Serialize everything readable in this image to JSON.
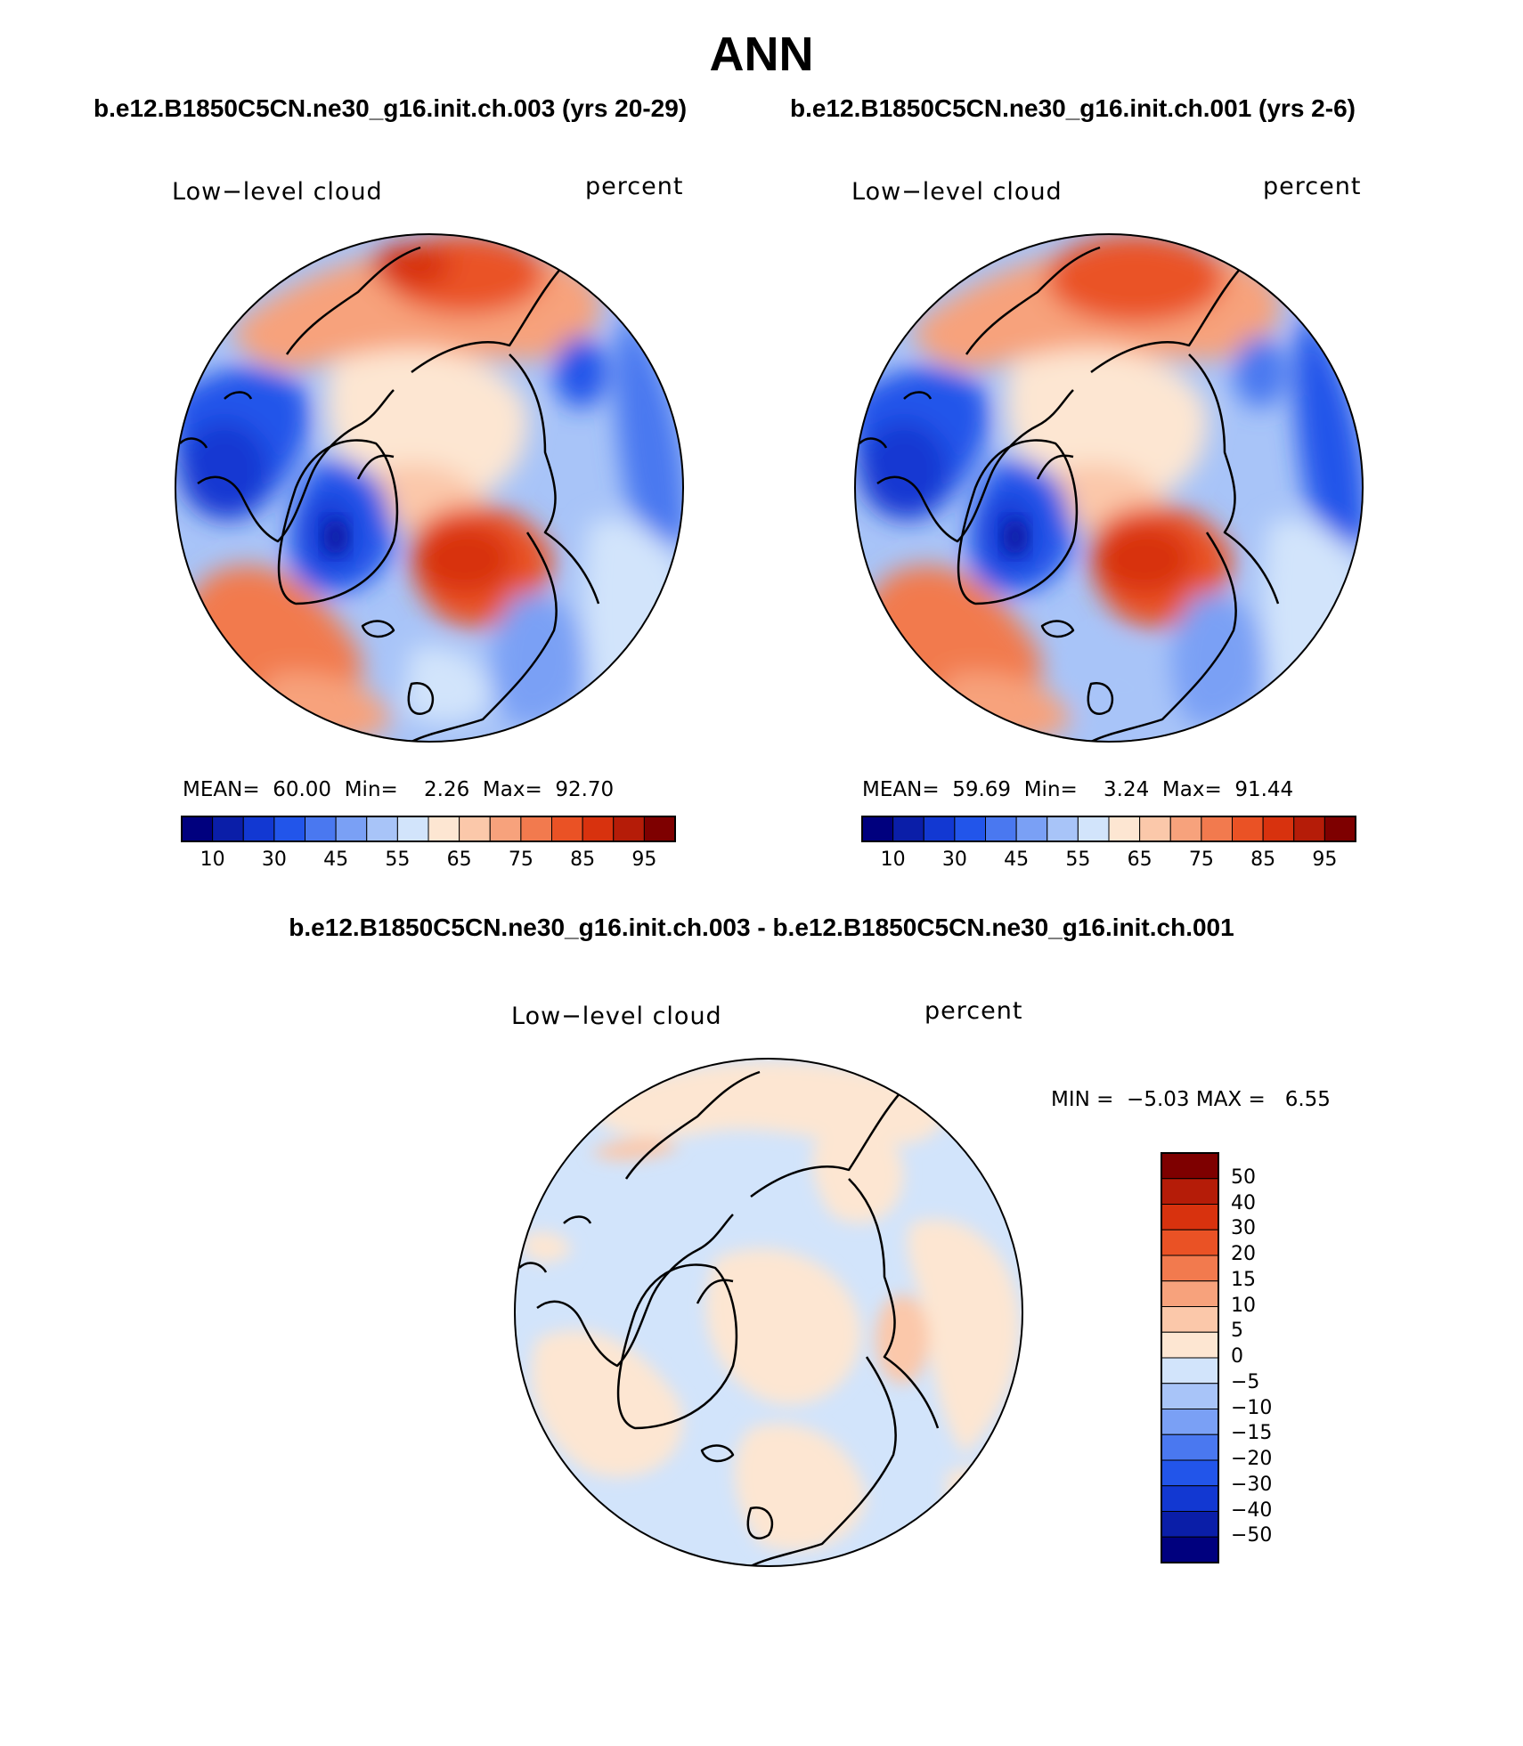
{
  "title": "ANN",
  "panels": [
    {
      "case": "b.e12.B1850C5CN.ne30_g16.init.ch.003 (yrs 20-29)",
      "variable": "Low−level cloud",
      "units": "percent",
      "mean_label": "MEAN=",
      "mean": "60.00",
      "min_label": "Min=",
      "min": "2.26",
      "max_label": "Max=",
      "max": "92.70"
    },
    {
      "case": "b.e12.B1850C5CN.ne30_g16.init.ch.001 (yrs 2-6)",
      "variable": "Low−level cloud",
      "units": "percent",
      "mean_label": "MEAN=",
      "mean": "59.69",
      "min_label": "Min=",
      "min": "3.24",
      "max_label": "Max=",
      "max": "91.44"
    }
  ],
  "diff": {
    "title": "b.e12.B1850C5CN.ne30_g16.init.ch.003 - b.e12.B1850C5CN.ne30_g16.init.ch.001",
    "variable": "Low−level cloud",
    "units": "percent",
    "min_label": "MIN =",
    "min": "−5.03",
    "max_label": "MAX =",
    "max": "6.55"
  },
  "colorbar_main": {
    "tick_labels": [
      "10",
      "30",
      "45",
      "55",
      "65",
      "75",
      "85",
      "95"
    ],
    "colors": [
      "#00007e",
      "#0a1ea8",
      "#1238d2",
      "#2255ea",
      "#4a78f0",
      "#7aa0f5",
      "#a8c4f8",
      "#d2e4fb",
      "#fde6d2",
      "#fbc8aa",
      "#f7a27c",
      "#f27a4e",
      "#ea5225",
      "#d8320e",
      "#b51c08",
      "#7e0000"
    ]
  },
  "colorbar_diff": {
    "tick_labels": [
      "50",
      "40",
      "30",
      "20",
      "15",
      "10",
      "5",
      "0",
      "−5",
      "−10",
      "−15",
      "−20",
      "−30",
      "−40",
      "−50"
    ],
    "colors": [
      "#7e0000",
      "#b51c08",
      "#d8320e",
      "#ea5225",
      "#f27a4e",
      "#f7a27c",
      "#fbc8aa",
      "#fde6d2",
      "#d2e4fb",
      "#a8c4f8",
      "#7aa0f5",
      "#4a78f0",
      "#2255ea",
      "#1238d2",
      "#0a1ea8",
      "#00007e"
    ]
  }
}
